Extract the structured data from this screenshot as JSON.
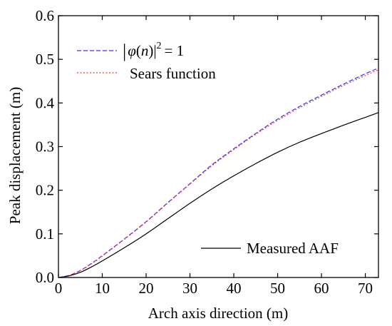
{
  "chart_data": {
    "type": "line",
    "xlabel": "Arch axis direction (m)",
    "ylabel": "Peak displacement (m)",
    "xlim": [
      0,
      73
    ],
    "ylim": [
      0,
      0.6
    ],
    "xticks": [
      0,
      10,
      20,
      30,
      40,
      50,
      60,
      70
    ],
    "yticks": [
      0.0,
      0.1,
      0.2,
      0.3,
      0.4,
      0.5,
      0.6
    ],
    "xtick_labels": [
      "0",
      "10",
      "20",
      "30",
      "40",
      "50",
      "60",
      "70"
    ],
    "ytick_labels": [
      "0.0",
      "0.1",
      "0.2",
      "0.3",
      "0.4",
      "0.5",
      "0.6"
    ],
    "grid": false,
    "series": [
      {
        "name": "|φ(n)|² = 1",
        "legend_math": {
          "open": "|",
          "phi": "φ",
          "open_paren": "(",
          "n": "n",
          "close": ")|",
          "sup": "2",
          "eq": "= 1"
        },
        "color": "#3333ff",
        "style": "dashed",
        "x": [
          0,
          2.5,
          5,
          7.5,
          10,
          15,
          20,
          25,
          30,
          35,
          40,
          45,
          50,
          55,
          60,
          65,
          70,
          73
        ],
        "y": [
          0,
          0.005,
          0.016,
          0.032,
          0.05,
          0.088,
          0.128,
          0.172,
          0.215,
          0.258,
          0.295,
          0.33,
          0.363,
          0.392,
          0.418,
          0.443,
          0.467,
          0.48
        ]
      },
      {
        "name": "Sears function",
        "color": "#ff3333",
        "style": "dotted",
        "x": [
          0,
          2.5,
          5,
          7.5,
          10,
          15,
          20,
          25,
          30,
          35,
          40,
          45,
          50,
          55,
          60,
          65,
          70,
          73
        ],
        "y": [
          0,
          0.005,
          0.016,
          0.031,
          0.049,
          0.087,
          0.127,
          0.171,
          0.214,
          0.256,
          0.293,
          0.328,
          0.36,
          0.389,
          0.415,
          0.44,
          0.463,
          0.476
        ]
      },
      {
        "name": "Measured AAF",
        "color": "#000000",
        "style": "solid",
        "x": [
          0,
          2.5,
          5,
          7.5,
          10,
          15,
          20,
          25,
          30,
          35,
          40,
          45,
          50,
          55,
          60,
          65,
          70,
          73
        ],
        "y": [
          0,
          0.004,
          0.012,
          0.024,
          0.038,
          0.068,
          0.1,
          0.135,
          0.17,
          0.203,
          0.233,
          0.261,
          0.287,
          0.31,
          0.33,
          0.349,
          0.367,
          0.378
        ]
      }
    ]
  }
}
